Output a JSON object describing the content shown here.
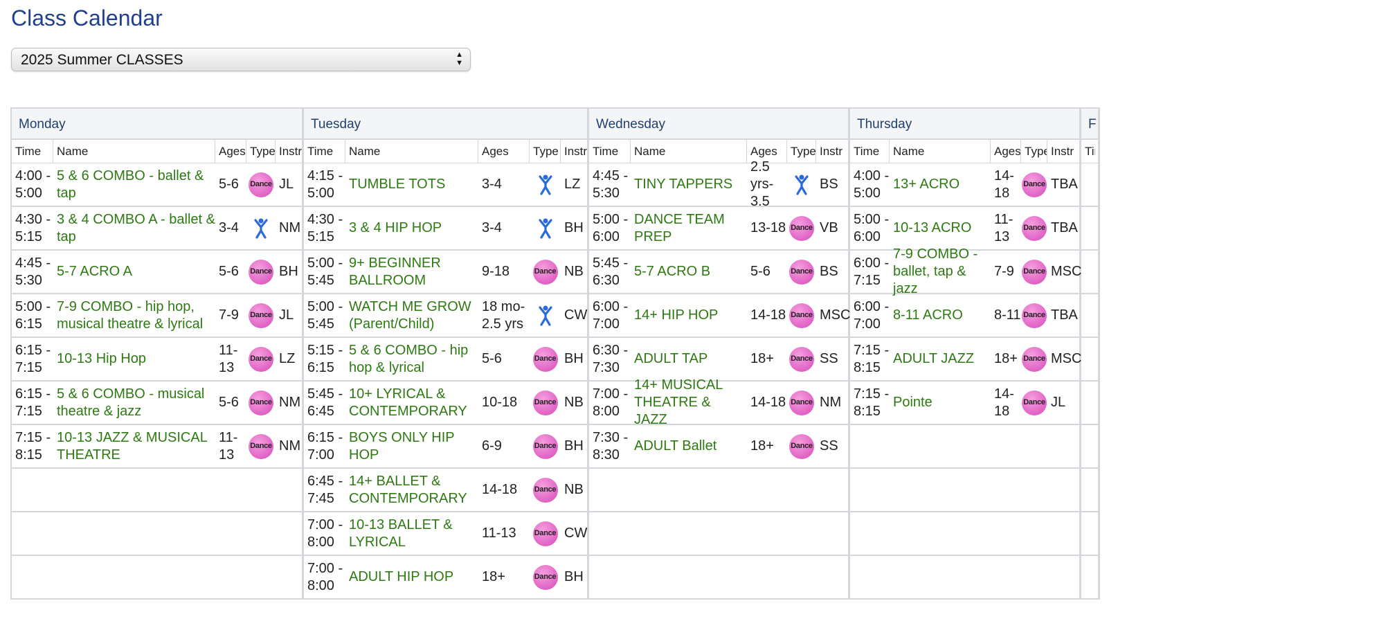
{
  "page": {
    "title": "Class Calendar"
  },
  "term_select": {
    "value": "2025 Summer CLASSES"
  },
  "columns": {
    "time": "Time",
    "name": "Name",
    "ages": "Ages",
    "type": "Type",
    "instr": "Instr"
  },
  "icons": {
    "dance": {
      "name": "dance-icon",
      "label": "Dance",
      "color": "#e063c5"
    },
    "kid": {
      "name": "kid-figure-icon",
      "color": "#2a6bd8"
    }
  },
  "days": [
    {
      "name": "Monday",
      "rows": [
        {
          "time": "4:00 - 5:00",
          "name": "5 & 6 COMBO - ballet & tap",
          "ages": "5-6",
          "type": "dance",
          "instr": "JL"
        },
        {
          "time": "4:30 - 5:15",
          "name": "3 & 4 COMBO A - ballet & tap",
          "ages": "3-4",
          "type": "kid",
          "instr": "NM"
        },
        {
          "time": "4:45 - 5:30",
          "name": "5-7 ACRO A",
          "ages": "5-6",
          "type": "dance",
          "instr": "BH"
        },
        {
          "time": "5:00 - 6:15",
          "name": "7-9 COMBO - hip hop, musical theatre & lyrical",
          "ages": "7-9",
          "type": "dance",
          "instr": "JL"
        },
        {
          "time": "6:15 - 7:15",
          "name": "10-13 Hip Hop",
          "ages": "11-13",
          "type": "dance",
          "instr": "LZ"
        },
        {
          "time": "6:15 - 7:15",
          "name": "5 & 6 COMBO - musical theatre & jazz",
          "ages": "5-6",
          "type": "dance",
          "instr": "NM"
        },
        {
          "time": "7:15 - 8:15",
          "name": "10-13 JAZZ & MUSICAL THEATRE",
          "ages": "11-13",
          "type": "dance",
          "instr": "NM"
        }
      ]
    },
    {
      "name": "Tuesday",
      "rows": [
        {
          "time": "4:15 - 5:00",
          "name": "TUMBLE TOTS",
          "ages": "3-4",
          "type": "kid",
          "instr": "LZ"
        },
        {
          "time": "4:30 - 5:15",
          "name": "3 & 4 HIP HOP",
          "ages": "3-4",
          "type": "kid",
          "instr": "BH"
        },
        {
          "time": "5:00 - 5:45",
          "name": "9+ BEGINNER BALLROOM",
          "ages": "9-18",
          "type": "dance",
          "instr": "NB"
        },
        {
          "time": "5:00 - 5:45",
          "name": "WATCH ME GROW (Parent/Child)",
          "ages": "18 mo-2.5 yrs",
          "type": "kid",
          "instr": "CW"
        },
        {
          "time": "5:15 - 6:15",
          "name": "5 & 6 COMBO - hip hop & lyrical",
          "ages": "5-6",
          "type": "dance",
          "instr": "BH"
        },
        {
          "time": "5:45 - 6:45",
          "name": "10+ LYRICAL & CONTEMPORARY",
          "ages": "10-18",
          "type": "dance",
          "instr": "NB"
        },
        {
          "time": "6:15 - 7:00",
          "name": "BOYS ONLY HIP HOP",
          "ages": "6-9",
          "type": "dance",
          "instr": "BH"
        },
        {
          "time": "6:45 - 7:45",
          "name": "14+ BALLET & CONTEMPORARY",
          "ages": "14-18",
          "type": "dance",
          "instr": "NB"
        },
        {
          "time": "7:00 - 8:00",
          "name": "10-13 BALLET & LYRICAL",
          "ages": "11-13",
          "type": "dance",
          "instr": "CW"
        },
        {
          "time": "7:00 - 8:00",
          "name": "ADULT HIP HOP",
          "ages": "18+",
          "type": "dance",
          "instr": "BH"
        }
      ]
    },
    {
      "name": "Wednesday",
      "rows": [
        {
          "time": "4:45 - 5:30",
          "name": "TINY TAPPERS",
          "ages": "2.5 yrs-3.5",
          "type": "kid",
          "instr": "BS"
        },
        {
          "time": "5:00 - 6:00",
          "name": "DANCE TEAM PREP",
          "ages": "13-18",
          "type": "dance",
          "instr": "VB"
        },
        {
          "time": "5:45 - 6:30",
          "name": "5-7 ACRO B",
          "ages": "5-6",
          "type": "dance",
          "instr": "BS"
        },
        {
          "time": "6:00 - 7:00",
          "name": "14+ HIP HOP",
          "ages": "14-18",
          "type": "dance",
          "instr": "MSC"
        },
        {
          "time": "6:30 - 7:30",
          "name": "ADULT TAP",
          "ages": "18+",
          "type": "dance",
          "instr": "SS"
        },
        {
          "time": "7:00 - 8:00",
          "name": "14+ MUSICAL THEATRE & JAZZ",
          "ages": "14-18",
          "type": "dance",
          "instr": "NM"
        },
        {
          "time": "7:30 - 8:30",
          "name": "ADULT Ballet",
          "ages": "18+",
          "type": "dance",
          "instr": "SS"
        }
      ]
    },
    {
      "name": "Thursday",
      "rows": [
        {
          "time": "4:00 - 5:00",
          "name": "13+ ACRO",
          "ages": "14-18",
          "type": "dance",
          "instr": "TBA"
        },
        {
          "time": "5:00 - 6:00",
          "name": "10-13 ACRO",
          "ages": "11-13",
          "type": "dance",
          "instr": "TBA"
        },
        {
          "time": "6:00 - 7:15",
          "name": "7-9 COMBO - ballet, tap & jazz",
          "ages": "7-9",
          "type": "dance",
          "instr": "MSC"
        },
        {
          "time": "6:00 - 7:00",
          "name": "8-11 ACRO",
          "ages": "8-11",
          "type": "dance",
          "instr": "TBA"
        },
        {
          "time": "7:15 - 8:15",
          "name": "ADULT JAZZ",
          "ages": "18+",
          "type": "dance",
          "instr": "MSC"
        },
        {
          "time": "7:15 - 8:15",
          "name": "Pointe",
          "ages": "14-18",
          "type": "dance",
          "instr": "JL"
        }
      ]
    },
    {
      "name": "F",
      "rows": []
    }
  ]
}
